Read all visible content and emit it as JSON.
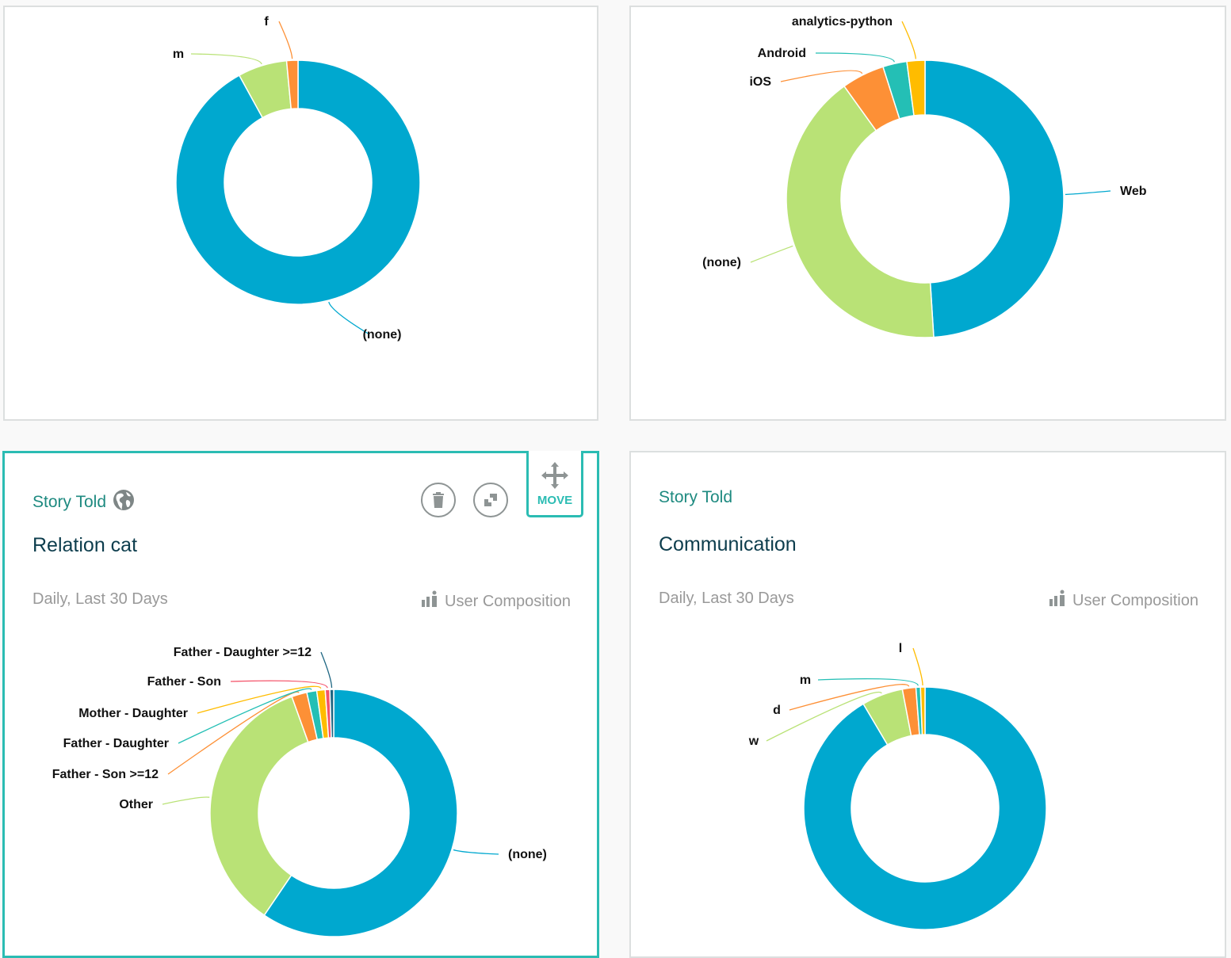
{
  "colors": {
    "blue": "#00a8cf",
    "green": "#b9e276",
    "orange": "#fd9036",
    "teal": "#24bfb5",
    "yellow": "#ffbc00",
    "red": "#f4546a",
    "navy": "#1e6682",
    "accent": "#2bbcb3"
  },
  "cards": {
    "bottom_left": {
      "event": "Story Told",
      "title": "Relation cat",
      "range": "Daily, Last 30 Days",
      "composition": "User Composition",
      "move_label": "MOVE"
    },
    "bottom_right": {
      "event": "Story Told",
      "title": "Communication",
      "range": "Daily, Last 30 Days",
      "composition": "User Composition"
    }
  },
  "chart_data": [
    {
      "type": "pie",
      "donut": true,
      "labels": [
        "(none)",
        "m",
        "f"
      ],
      "values": [
        92,
        6.5,
        1.5
      ],
      "colors": [
        "#00a8cf",
        "#b9e276",
        "#fd9036"
      ]
    },
    {
      "type": "pie",
      "donut": true,
      "labels": [
        "Web",
        "(none)",
        "iOS",
        "Android",
        "analytics-python"
      ],
      "values": [
        49,
        41.1,
        5,
        2.8,
        2.1
      ],
      "colors": [
        "#00a8cf",
        "#b9e276",
        "#fd9036",
        "#24bfb5",
        "#ffbc00"
      ]
    },
    {
      "type": "pie",
      "donut": true,
      "title": "Relation cat",
      "labels": [
        "(none)",
        "Other",
        "Father - Son >=12",
        "Father - Daughter",
        "Mother - Daughter",
        "Father - Son",
        "Father - Daughter >=12"
      ],
      "values": [
        59.5,
        35,
        2,
        1.3,
        1.1,
        0.6,
        0.5
      ],
      "colors": [
        "#00a8cf",
        "#b9e276",
        "#fd9036",
        "#24bfb5",
        "#ffbc00",
        "#f4546a",
        "#1e6682"
      ]
    },
    {
      "type": "pie",
      "donut": true,
      "title": "Communication",
      "labels": [
        "",
        "w",
        "d",
        "m",
        "l"
      ],
      "values": [
        91.5,
        5.5,
        1.8,
        0.6,
        0.6
      ],
      "colors": [
        "#00a8cf",
        "#b9e276",
        "#fd9036",
        "#24bfb5",
        "#ffbc00"
      ]
    }
  ]
}
